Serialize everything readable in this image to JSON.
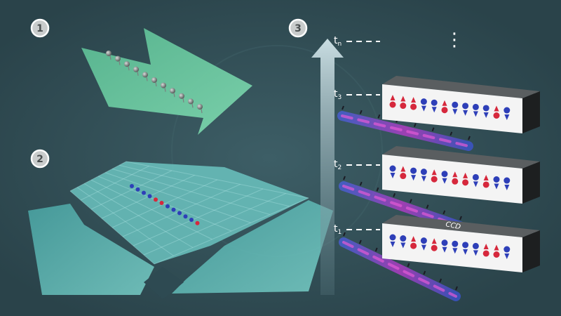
{
  "steps": [
    {
      "label": "1"
    },
    {
      "label": "2"
    },
    {
      "label": "3"
    }
  ],
  "time_labels": [
    {
      "base": "t",
      "sub": "n"
    },
    {
      "base": "t",
      "sub": "3"
    },
    {
      "base": "t",
      "sub": "2"
    },
    {
      "base": "t",
      "sub": "1"
    }
  ],
  "camera_label": "CCD",
  "ellipsis": "⋮",
  "colors": {
    "background": "#2e4a52",
    "beam_green": "#6cc9a0",
    "lattice_teal": "#5fb7b2",
    "spin_up": "#d6283c",
    "spin_down": "#2e3fb8",
    "atom_gray": "#8a8f8e"
  },
  "snapshots": [
    {
      "time": "t3",
      "spins": [
        "up",
        "up",
        "up",
        "down",
        "down",
        "up",
        "down",
        "down",
        "down",
        "down",
        "up",
        "down"
      ]
    },
    {
      "time": "t2",
      "spins": [
        "down",
        "up",
        "down",
        "down",
        "up",
        "down",
        "up",
        "up",
        "down",
        "up",
        "down",
        "down"
      ]
    },
    {
      "time": "t1",
      "spins": [
        "down",
        "down",
        "up",
        "down",
        "up",
        "down",
        "down",
        "down",
        "down",
        "up",
        "up",
        "down"
      ]
    }
  ]
}
